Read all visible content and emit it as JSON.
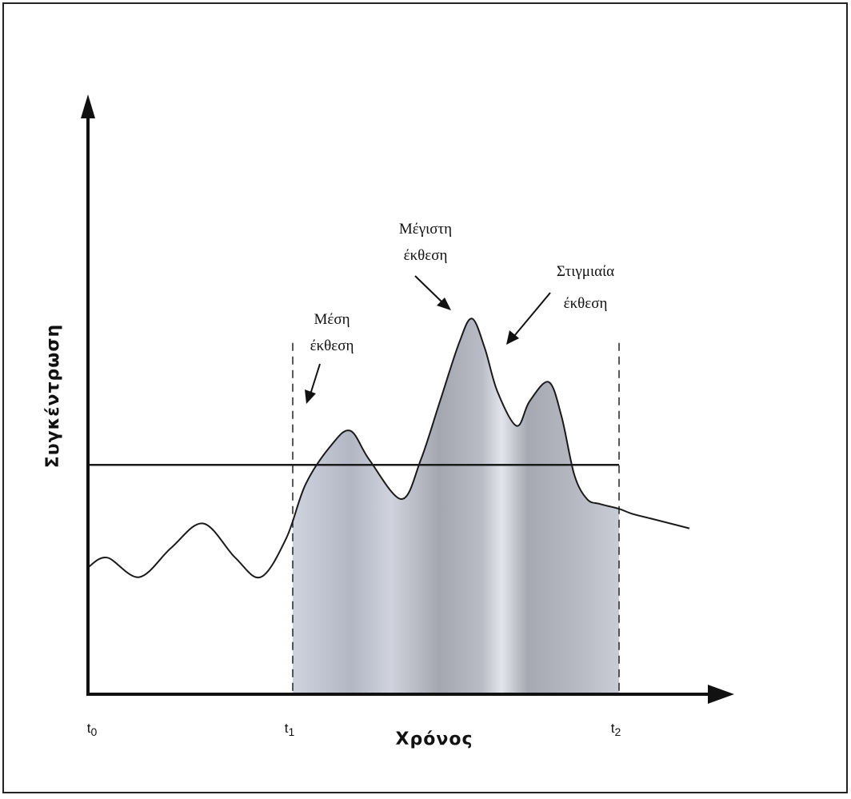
{
  "chart_data": {
    "type": "line",
    "title": "",
    "xlabel": "Χρόνος",
    "ylabel": "Συγκέντρωση",
    "ylim": [
      0,
      100
    ],
    "xlim": [
      0,
      100
    ],
    "x_ticks": [
      {
        "name": "t0",
        "base": "t",
        "sub": "0",
        "x": 0
      },
      {
        "name": "t1",
        "base": "t",
        "sub": "1",
        "x": 32
      },
      {
        "name": "t2",
        "base": "t",
        "sub": "2",
        "x": 83
      }
    ],
    "curve": {
      "x": [
        0,
        3,
        8,
        13,
        18,
        23,
        27,
        31,
        34,
        38,
        41,
        44,
        49,
        52,
        55,
        58,
        60,
        62,
        64,
        67,
        69,
        72,
        74,
        76,
        78,
        80,
        83,
        85,
        88,
        91,
        94
      ],
      "y": [
        26,
        28,
        24,
        30,
        35,
        28,
        24,
        32,
        43,
        51,
        54,
        48,
        40,
        48,
        60,
        72,
        77,
        71,
        62,
        55,
        60,
        64,
        57,
        45,
        40,
        39,
        38,
        37,
        36,
        35,
        34
      ]
    },
    "mean_exposure": {
      "value": 47,
      "x_start": 0,
      "x_end": 83
    },
    "shaded_interval": [
      32,
      83
    ],
    "annotations": {
      "mean": [
        "Μέση",
        "έκθεση"
      ],
      "peak": [
        "Μέγιστη",
        "έκθεση"
      ],
      "instant": [
        "Στιγμιαία",
        "έκθεση"
      ]
    },
    "colors": {
      "line": "#1a1a1a",
      "shade_dark": "#9fa0a8",
      "shade_light": "#cdd1db",
      "axis": "#111111"
    }
  }
}
